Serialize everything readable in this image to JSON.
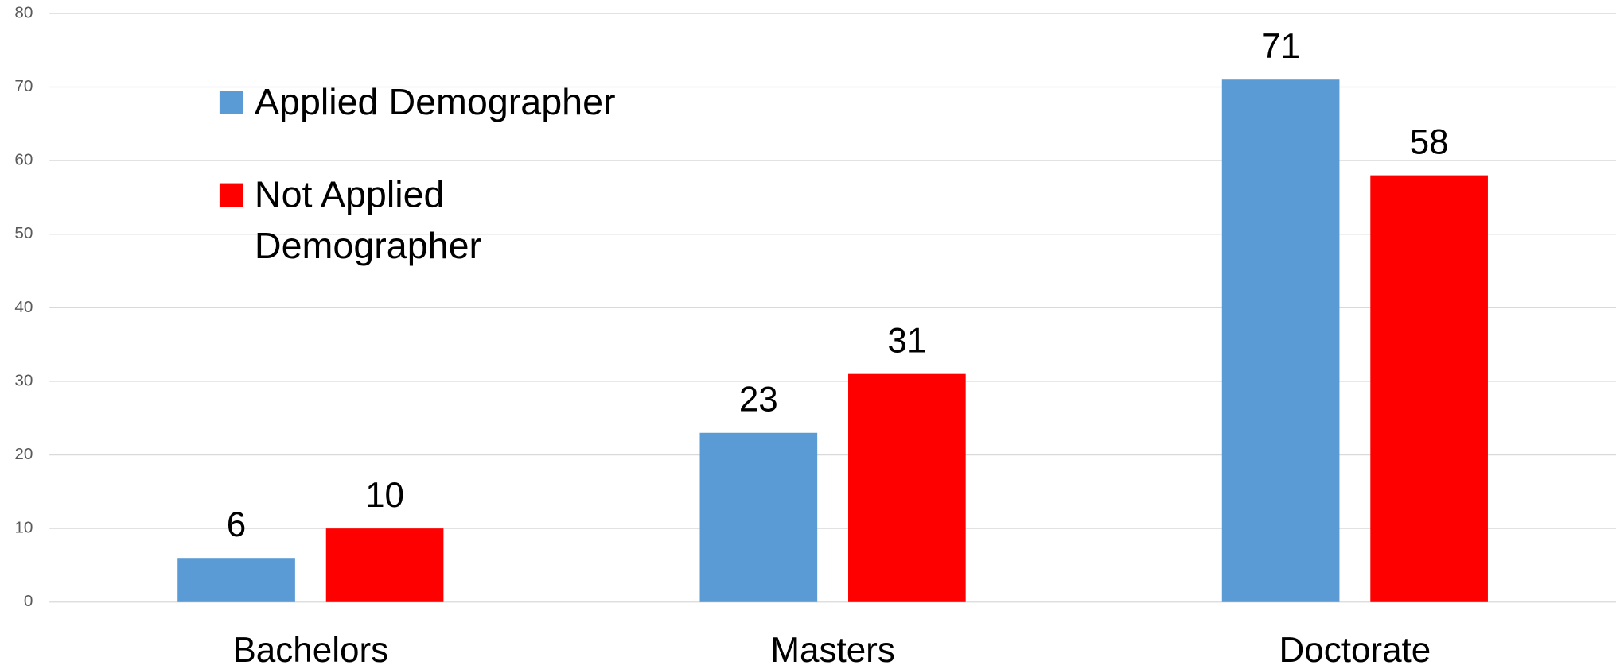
{
  "chart_data": {
    "type": "bar",
    "categories": [
      "Bachelors",
      "Masters",
      "Doctorate"
    ],
    "series": [
      {
        "name": "Applied Demographer",
        "color": "#5b9bd5",
        "values": [
          6,
          23,
          71
        ]
      },
      {
        "name": "Not Applied Demographer",
        "color": "#ff0000",
        "values": [
          10,
          31,
          58
        ]
      }
    ],
    "ylim": [
      0,
      80
    ],
    "yticks": [
      0,
      10,
      20,
      30,
      40,
      50,
      60,
      70,
      80
    ],
    "grid": true,
    "legend": "upper left"
  }
}
